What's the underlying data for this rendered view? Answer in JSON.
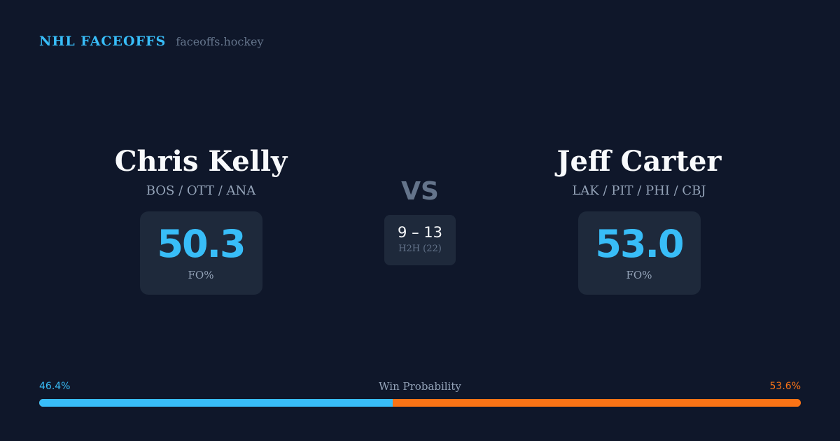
{
  "brand": {
    "name": "NHL FACEOFFS",
    "site": "faceoffs.hockey"
  },
  "player_left": {
    "name": "Chris Kelly",
    "teams": "BOS / OTT / ANA",
    "fo_value": "50.3",
    "fo_label": "FO%"
  },
  "player_right": {
    "name": "Jeff Carter",
    "teams": "LAK / PIT / PHI / CBJ",
    "fo_value": "53.0",
    "fo_label": "FO%"
  },
  "versus": {
    "label": "VS",
    "h2h_score": "9 – 13",
    "h2h_label": "H2H (22)"
  },
  "win_probability": {
    "title": "Win Probability",
    "left_label": "46.4%",
    "right_label": "53.6%",
    "left_fraction": 0.464,
    "left_color": "#38bdf8",
    "right_color": "#f97316"
  }
}
